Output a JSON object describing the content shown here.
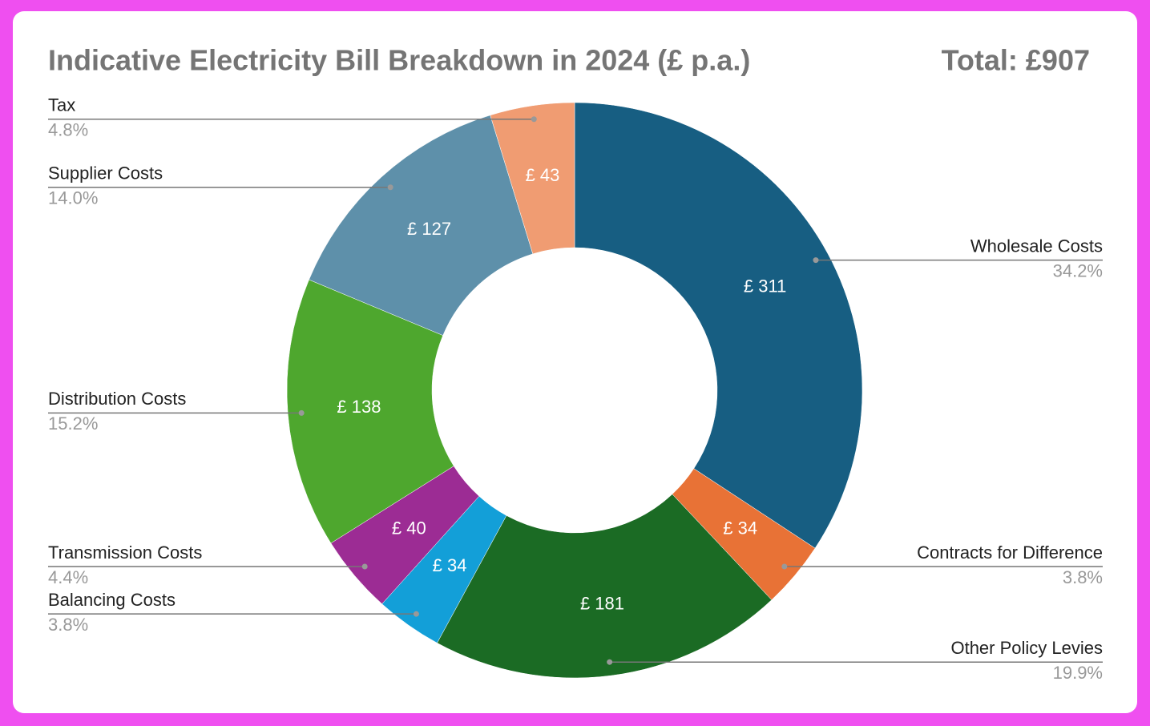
{
  "chart_data": {
    "type": "donut",
    "title": "Indicative Electricity Bill Breakdown in 2024 (£ p.a.)",
    "total_label": "Total: £907",
    "categories": [
      "Wholesale Costs",
      "Contracts for Difference",
      "Other Policy Levies",
      "Balancing Costs",
      "Transmission Costs",
      "Distribution Costs",
      "Supplier Costs",
      "Tax"
    ],
    "values": [
      311,
      34,
      181,
      34,
      40,
      138,
      127,
      43
    ],
    "value_labels": [
      "£ 311",
      "£ 34",
      "£ 181",
      "£ 34",
      "£ 40",
      "£ 138",
      "£ 127",
      "£ 43"
    ],
    "percent_labels": [
      "34.2%",
      "3.8%",
      "19.9%",
      "3.8%",
      "4.4%",
      "15.2%",
      "14.0%",
      "4.8%"
    ],
    "colors": [
      "#175e82",
      "#e87236",
      "#1b6b24",
      "#139fd8",
      "#9c2c94",
      "#4ea72e",
      "#5e90aa",
      "#f09c72"
    ]
  }
}
